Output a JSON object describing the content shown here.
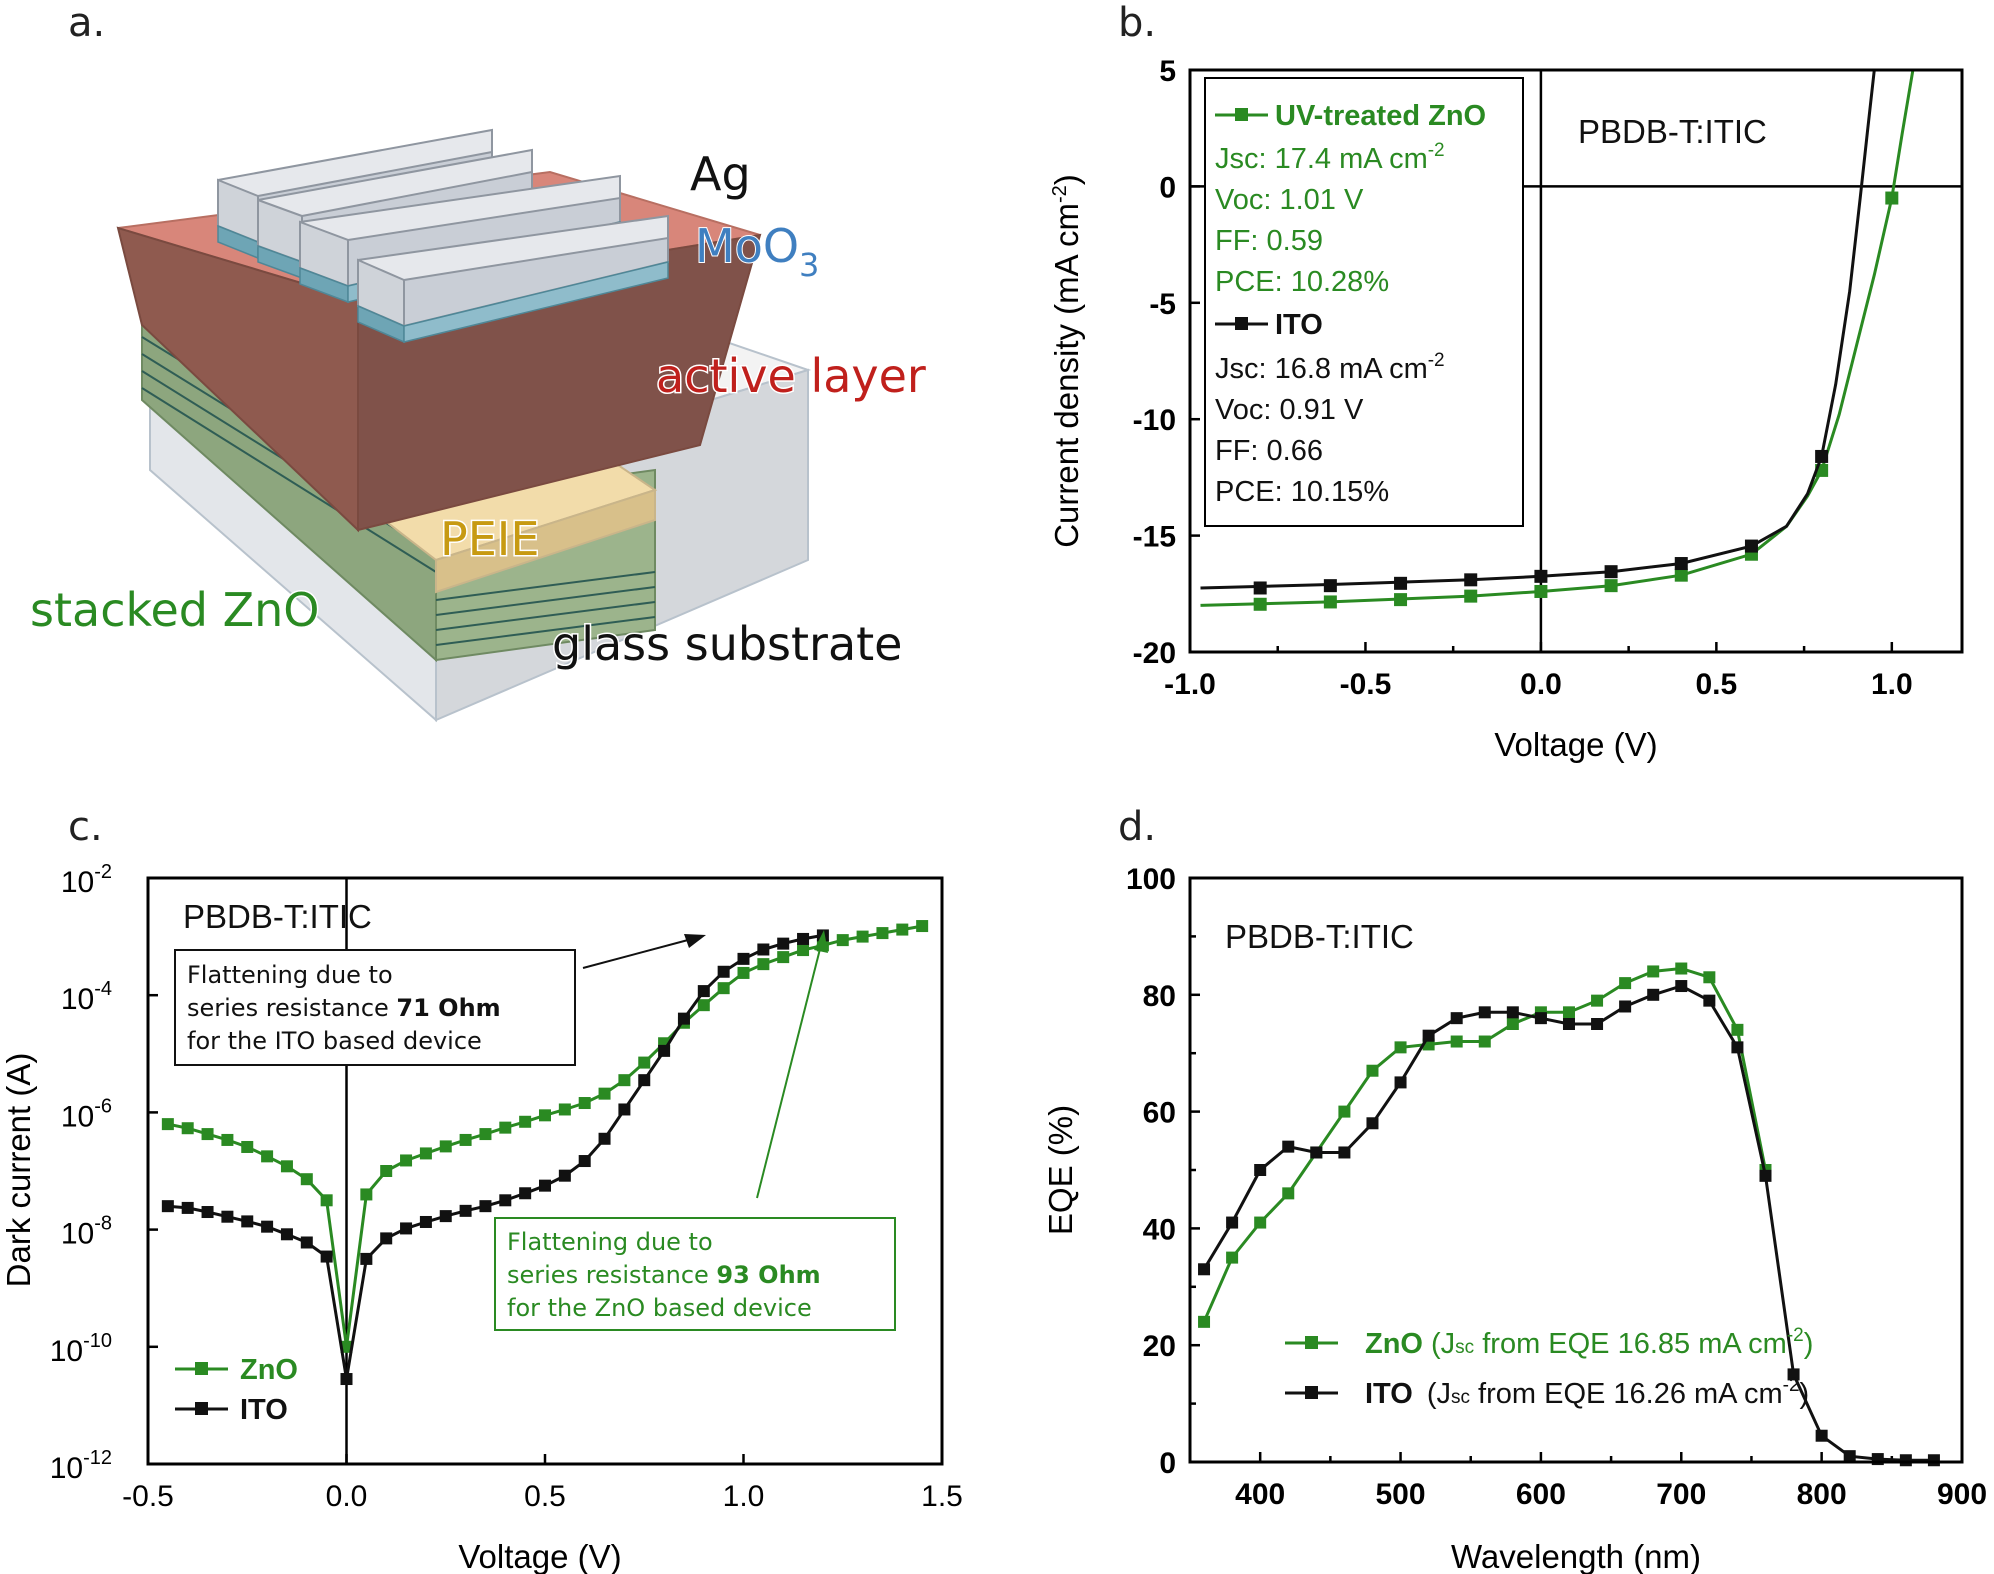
{
  "panel_a": {
    "panel_label": "a.",
    "layers": {
      "ag": "Ag",
      "moo3_base": "MoO",
      "moo3_sub": "3",
      "active": "active layer",
      "peie": "PEIE",
      "zno": "stacked ZnO",
      "glass": "glass substrate"
    }
  },
  "panel_b": {
    "panel_label": "b.",
    "legend": {
      "g_name": "UV-treated ZnO",
      "g_jsc": "Jsc:  17.4 mA cm",
      "g_jsc_sup": "-2",
      "g_voc": "Voc:  1.01 V",
      "g_ff": "FF:    0.59",
      "g_pce": "PCE: 10.28%",
      "k_name": "ITO",
      "k_jsc": "Jsc:   16.8 mA cm",
      "k_jsc_sup": "-2",
      "k_voc": "Voc:  0.91 V",
      "k_ff": "FF:     0.66",
      "k_pce": "PCE: 10.15%"
    },
    "title": "PBDB-T:ITIC"
  },
  "panel_c": {
    "panel_label": "c.",
    "title": "PBDB-T:ITIC",
    "annot_k": {
      "l1": "Flattening due to",
      "l2": "series resistance ",
      "l2b": "71 Ohm",
      "l3": "for the ITO based device"
    },
    "annot_g": {
      "l1": "Flattening due to",
      "l2": "series resistance ",
      "l2b": "93 Ohm",
      "l3": "for the ZnO based device"
    },
    "legend": {
      "g": "ZnO",
      "k": "ITO"
    }
  },
  "panel_d": {
    "panel_label": "d.",
    "title": "PBDB-T:ITIC",
    "legend": {
      "g_name": "ZnO",
      "g_open": "(J",
      "g_sub": "sc",
      "g_rest": " from EQE 16.85 mA cm",
      "g_sup": "-2",
      "g_close": ")",
      "k_name": "ITO",
      "k_open": "(J",
      "k_sub": "sc",
      "k_rest": " from EQE 16.26 mA cm",
      "k_sup": "-2",
      "k_close": ")"
    }
  },
  "colors": {
    "green": "#2a8a22",
    "black": "#111111",
    "red": "#c0201c",
    "blue": "#3f7fc0",
    "gold": "#c79a12"
  },
  "chart_data": [
    {
      "id": "b",
      "type": "line",
      "xlabel": "Voltage (V)",
      "ylabel": "Current density (mA cm",
      "ylabel_sup": "-2",
      "ylabel_close": ")",
      "xlim": [
        -1.0,
        1.2
      ],
      "ylim": [
        -20,
        5
      ],
      "xticks": [
        -1.0,
        -0.5,
        0.0,
        0.5,
        1.0
      ],
      "xtick_labels": [
        "-1.0",
        "-0.5",
        "0.0",
        "0.5",
        "1.0"
      ],
      "yticks": [
        -20,
        -15,
        -10,
        -5,
        0,
        5
      ],
      "ytick_labels": [
        "-20",
        "-15",
        "-10",
        "-5",
        "0",
        "5"
      ],
      "series": [
        {
          "name": "UV-treated ZnO",
          "color": "green",
          "line": [
            [
              -0.97,
              -18.0
            ],
            [
              -0.6,
              -17.85
            ],
            [
              -0.2,
              -17.6
            ],
            [
              0.0,
              -17.4
            ],
            [
              0.2,
              -17.15
            ],
            [
              0.4,
              -16.7
            ],
            [
              0.6,
              -15.8
            ],
            [
              0.7,
              -14.6
            ],
            [
              0.76,
              -13.3
            ],
            [
              0.8,
              -12.2
            ],
            [
              0.85,
              -9.8
            ],
            [
              0.9,
              -6.8
            ],
            [
              0.95,
              -3.8
            ],
            [
              1.0,
              -0.5
            ],
            [
              1.03,
              2.3
            ],
            [
              1.06,
              5.0
            ]
          ],
          "markers": [
            [
              -0.8,
              -17.95
            ],
            [
              -0.6,
              -17.85
            ],
            [
              -0.4,
              -17.75
            ],
            [
              -0.2,
              -17.6
            ],
            [
              0.0,
              -17.4
            ],
            [
              0.2,
              -17.15
            ],
            [
              0.4,
              -16.7
            ],
            [
              0.6,
              -15.8
            ],
            [
              0.8,
              -12.2
            ],
            [
              1.0,
              -0.5
            ]
          ]
        },
        {
          "name": "ITO",
          "color": "black",
          "line": [
            [
              -0.97,
              -17.25
            ],
            [
              -0.6,
              -17.1
            ],
            [
              -0.2,
              -16.9
            ],
            [
              0.0,
              -16.75
            ],
            [
              0.2,
              -16.55
            ],
            [
              0.4,
              -16.2
            ],
            [
              0.6,
              -15.45
            ],
            [
              0.7,
              -14.6
            ],
            [
              0.76,
              -13.2
            ],
            [
              0.8,
              -11.6
            ],
            [
              0.84,
              -8.5
            ],
            [
              0.88,
              -4.5
            ],
            [
              0.91,
              -0.5
            ],
            [
              0.93,
              2.3
            ],
            [
              0.95,
              5.0
            ]
          ],
          "markers": [
            [
              -0.8,
              -17.25
            ],
            [
              -0.6,
              -17.15
            ],
            [
              -0.4,
              -17.05
            ],
            [
              -0.2,
              -16.9
            ],
            [
              0.0,
              -16.75
            ],
            [
              0.2,
              -16.55
            ],
            [
              0.4,
              -16.2
            ],
            [
              0.6,
              -15.45
            ],
            [
              0.8,
              -11.6
            ]
          ]
        }
      ]
    },
    {
      "id": "c",
      "type": "line",
      "xlabel": "Voltage (V)",
      "ylabel": "Dark current  (A)",
      "xlim": [
        -0.5,
        1.5
      ],
      "ylim_log10": [
        -12,
        -2
      ],
      "xticks": [
        -0.5,
        0.0,
        0.5,
        1.0,
        1.5
      ],
      "xtick_labels": [
        "-0.5",
        "0.0",
        "0.5",
        "1.0",
        "1.5"
      ],
      "yticks_log10": [
        -12,
        -10,
        -8,
        -6,
        -4,
        -2
      ],
      "ytick_base": "10",
      "ytick_exps": [
        "-12",
        "-10",
        "-8",
        "-6",
        "-4",
        "-2"
      ],
      "series": [
        {
          "name": "ZnO",
          "color": "green",
          "points_log10": [
            [
              -0.45,
              -6.2
            ],
            [
              -0.4,
              -6.27
            ],
            [
              -0.35,
              -6.37
            ],
            [
              -0.3,
              -6.47
            ],
            [
              -0.25,
              -6.59
            ],
            [
              -0.2,
              -6.75
            ],
            [
              -0.15,
              -6.92
            ],
            [
              -0.1,
              -7.14
            ],
            [
              -0.05,
              -7.5
            ],
            [
              0.0,
              -10.0
            ],
            [
              0.05,
              -7.4
            ],
            [
              0.1,
              -7.0
            ],
            [
              0.15,
              -6.82
            ],
            [
              0.2,
              -6.7
            ],
            [
              0.25,
              -6.58
            ],
            [
              0.3,
              -6.47
            ],
            [
              0.35,
              -6.37
            ],
            [
              0.4,
              -6.26
            ],
            [
              0.45,
              -6.16
            ],
            [
              0.5,
              -6.05
            ],
            [
              0.55,
              -5.95
            ],
            [
              0.6,
              -5.84
            ],
            [
              0.65,
              -5.68
            ],
            [
              0.7,
              -5.45
            ],
            [
              0.75,
              -5.15
            ],
            [
              0.8,
              -4.82
            ],
            [
              0.85,
              -4.47
            ],
            [
              0.9,
              -4.17
            ],
            [
              0.95,
              -3.88
            ],
            [
              1.0,
              -3.62
            ],
            [
              1.05,
              -3.47
            ],
            [
              1.1,
              -3.35
            ],
            [
              1.15,
              -3.23
            ],
            [
              1.2,
              -3.15
            ],
            [
              1.25,
              -3.06
            ],
            [
              1.3,
              -3.0
            ],
            [
              1.35,
              -2.94
            ],
            [
              1.4,
              -2.88
            ],
            [
              1.45,
              -2.82
            ]
          ]
        },
        {
          "name": "ITO",
          "color": "black",
          "points_log10": [
            [
              -0.45,
              -7.6
            ],
            [
              -0.4,
              -7.63
            ],
            [
              -0.35,
              -7.7
            ],
            [
              -0.3,
              -7.78
            ],
            [
              -0.25,
              -7.86
            ],
            [
              -0.2,
              -7.95
            ],
            [
              -0.15,
              -8.08
            ],
            [
              -0.1,
              -8.22
            ],
            [
              -0.05,
              -8.46
            ],
            [
              0.0,
              -10.55
            ],
            [
              0.05,
              -8.5
            ],
            [
              0.1,
              -8.15
            ],
            [
              0.15,
              -7.98
            ],
            [
              0.2,
              -7.87
            ],
            [
              0.25,
              -7.77
            ],
            [
              0.3,
              -7.68
            ],
            [
              0.35,
              -7.6
            ],
            [
              0.4,
              -7.5
            ],
            [
              0.45,
              -7.38
            ],
            [
              0.5,
              -7.25
            ],
            [
              0.55,
              -7.08
            ],
            [
              0.6,
              -6.83
            ],
            [
              0.65,
              -6.45
            ],
            [
              0.7,
              -5.95
            ],
            [
              0.75,
              -5.45
            ],
            [
              0.8,
              -4.95
            ],
            [
              0.85,
              -4.4
            ],
            [
              0.9,
              -3.93
            ],
            [
              0.95,
              -3.6
            ],
            [
              1.0,
              -3.38
            ],
            [
              1.05,
              -3.22
            ],
            [
              1.1,
              -3.12
            ],
            [
              1.15,
              -3.04
            ],
            [
              1.2,
              -2.98
            ]
          ]
        }
      ]
    },
    {
      "id": "d",
      "type": "line",
      "xlabel": "Wavelength (nm)",
      "ylabel": "EQE (%)",
      "xlim": [
        350,
        900
      ],
      "ylim": [
        0,
        100
      ],
      "xticks": [
        400,
        500,
        600,
        700,
        800,
        900
      ],
      "xtick_labels": [
        "400",
        "500",
        "600",
        "700",
        "800",
        "900"
      ],
      "yticks": [
        0,
        20,
        40,
        60,
        80,
        100
      ],
      "ytick_labels": [
        "0",
        "20",
        "40",
        "60",
        "80",
        "100"
      ],
      "series": [
        {
          "name": "ZnO",
          "color": "green",
          "points": [
            [
              360,
              24
            ],
            [
              380,
              35
            ],
            [
              400,
              41
            ],
            [
              420,
              46
            ],
            [
              440,
              53
            ],
            [
              460,
              60
            ],
            [
              480,
              67
            ],
            [
              500,
              71
            ],
            [
              520,
              71.5
            ],
            [
              540,
              72
            ],
            [
              560,
              72
            ],
            [
              580,
              75
            ],
            [
              600,
              77
            ],
            [
              620,
              77
            ],
            [
              640,
              79
            ],
            [
              660,
              82
            ],
            [
              680,
              84
            ],
            [
              700,
              84.5
            ],
            [
              720,
              83
            ],
            [
              740,
              74
            ],
            [
              760,
              50
            ]
          ]
        },
        {
          "name": "ITO",
          "color": "black",
          "points": [
            [
              360,
              33
            ],
            [
              380,
              41
            ],
            [
              400,
              50
            ],
            [
              420,
              54
            ],
            [
              440,
              53
            ],
            [
              460,
              53
            ],
            [
              480,
              58
            ],
            [
              500,
              65
            ],
            [
              520,
              73
            ],
            [
              540,
              76
            ],
            [
              560,
              77
            ],
            [
              580,
              77
            ],
            [
              600,
              76
            ],
            [
              620,
              75
            ],
            [
              640,
              75
            ],
            [
              660,
              78
            ],
            [
              680,
              80
            ],
            [
              700,
              81.5
            ],
            [
              720,
              79
            ],
            [
              740,
              71
            ],
            [
              760,
              49
            ],
            [
              780,
              15
            ],
            [
              800,
              4.5
            ],
            [
              820,
              1
            ],
            [
              840,
              0.5
            ],
            [
              860,
              0.3
            ],
            [
              880,
              0.3
            ]
          ]
        }
      ]
    }
  ]
}
